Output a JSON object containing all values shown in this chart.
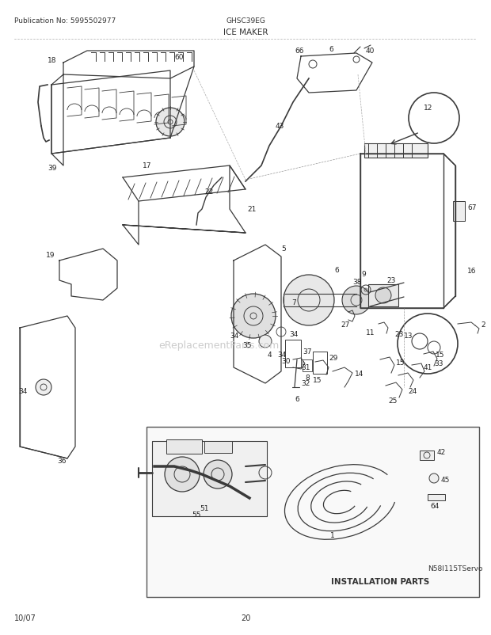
{
  "title_pub": "Publication No: 5995502977",
  "title_model": "GHSC39EG",
  "title_section": "ICE MAKER",
  "footer_left": "10/07",
  "footer_center": "20",
  "footer_right": "N58I115TServo",
  "watermark": "eReplacementParts.com",
  "installation_label": "INSTALLATION PARTS",
  "bg_color": "#ffffff",
  "line_color": "#3a3a3a",
  "light_line": "#777777",
  "fig_w": 6.2,
  "fig_h": 8.03,
  "dpi": 100
}
